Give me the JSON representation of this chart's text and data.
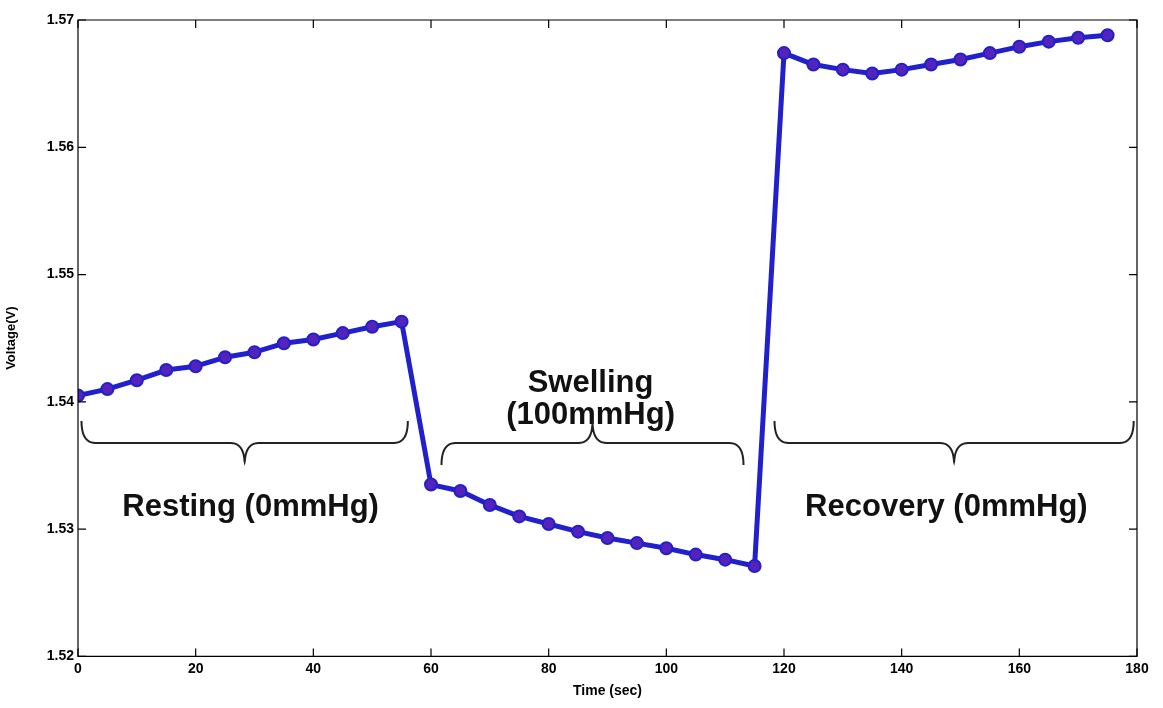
{
  "chart_data": {
    "type": "line",
    "xlabel": "Time (sec)",
    "ylabel": "Voltage(V)",
    "x": [
      0,
      5,
      10,
      15,
      20,
      25,
      30,
      35,
      40,
      45,
      50,
      55,
      60,
      65,
      70,
      75,
      80,
      85,
      90,
      95,
      100,
      105,
      110,
      115,
      120,
      125,
      130,
      135,
      140,
      145,
      150,
      155,
      160,
      165,
      170,
      175
    ],
    "series": [
      {
        "color": "#2020cc",
        "values": [
          1.5405,
          1.541,
          1.5417,
          1.5425,
          1.5428,
          1.5435,
          1.5439,
          1.5446,
          1.5449,
          1.5454,
          1.5459,
          1.5463,
          1.5335,
          1.533,
          1.5319,
          1.531,
          1.5304,
          1.5298,
          1.5293,
          1.5289,
          1.5285,
          1.528,
          1.5276,
          1.5271,
          1.5674,
          1.5665,
          1.5661,
          1.5658,
          1.5661,
          1.5665,
          1.5669,
          1.5674,
          1.5679,
          1.5683,
          1.5686,
          1.5688
        ]
      }
    ],
    "xlim": [
      0,
      180
    ],
    "xticks": [
      0,
      20,
      40,
      60,
      80,
      100,
      120,
      140,
      160,
      180
    ],
    "ylim": [
      1.52,
      1.57
    ],
    "yticks": [
      1.52,
      1.53,
      1.54,
      1.55,
      1.56,
      1.57
    ],
    "marker": "circle",
    "line_style": "solid",
    "grid": false,
    "legend": false,
    "annotations": [
      "Resting (0mmHg)",
      "Swelling\n(100mmHg)",
      "Recovery (0mmHg)"
    ]
  }
}
